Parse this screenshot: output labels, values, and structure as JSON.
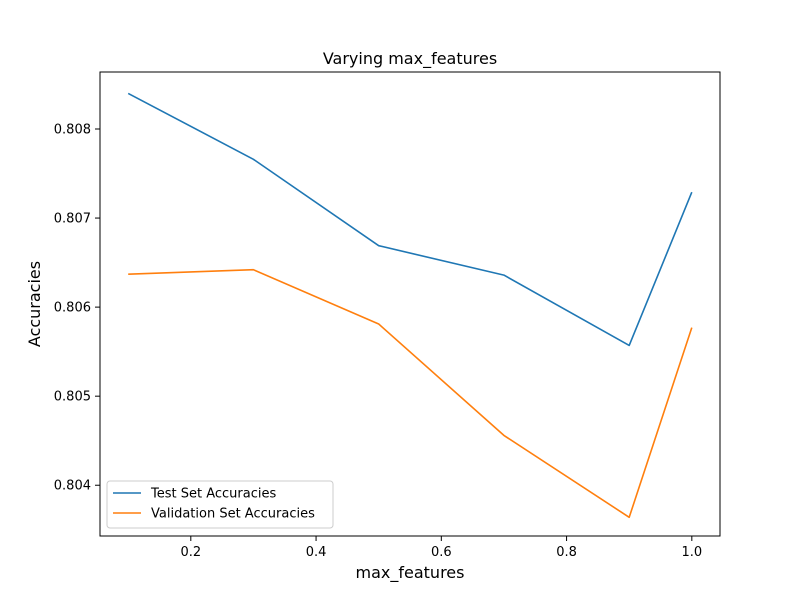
{
  "chart_data": {
    "type": "line",
    "title": "Varying max_features",
    "xlabel": "max_features",
    "ylabel": "Accuracies",
    "x": [
      0.1,
      0.3,
      0.5,
      0.7,
      0.9,
      1.0
    ],
    "series": [
      {
        "name": "Test Set Accuracies",
        "color": "#1f77b4",
        "values": [
          0.8084,
          0.80766,
          0.80669,
          0.80636,
          0.80557,
          0.80729
        ]
      },
      {
        "name": "Validation Set Accuracies",
        "color": "#ff7f0e",
        "values": [
          0.80637,
          0.80642,
          0.80581,
          0.80456,
          0.80364,
          0.80577
        ]
      }
    ],
    "xlim": [
      0.055,
      1.045
    ],
    "ylim": [
      0.80343,
      0.80864
    ],
    "xticks": [
      0.2,
      0.4,
      0.6,
      0.8,
      1.0
    ],
    "xtick_labels": [
      "0.2",
      "0.4",
      "0.6",
      "0.8",
      "1.0"
    ],
    "yticks": [
      0.804,
      0.805,
      0.806,
      0.807,
      0.808
    ],
    "ytick_labels": [
      "0.804",
      "0.805",
      "0.806",
      "0.807",
      "0.808"
    ],
    "grid": false,
    "legend_position": "lower-left"
  }
}
